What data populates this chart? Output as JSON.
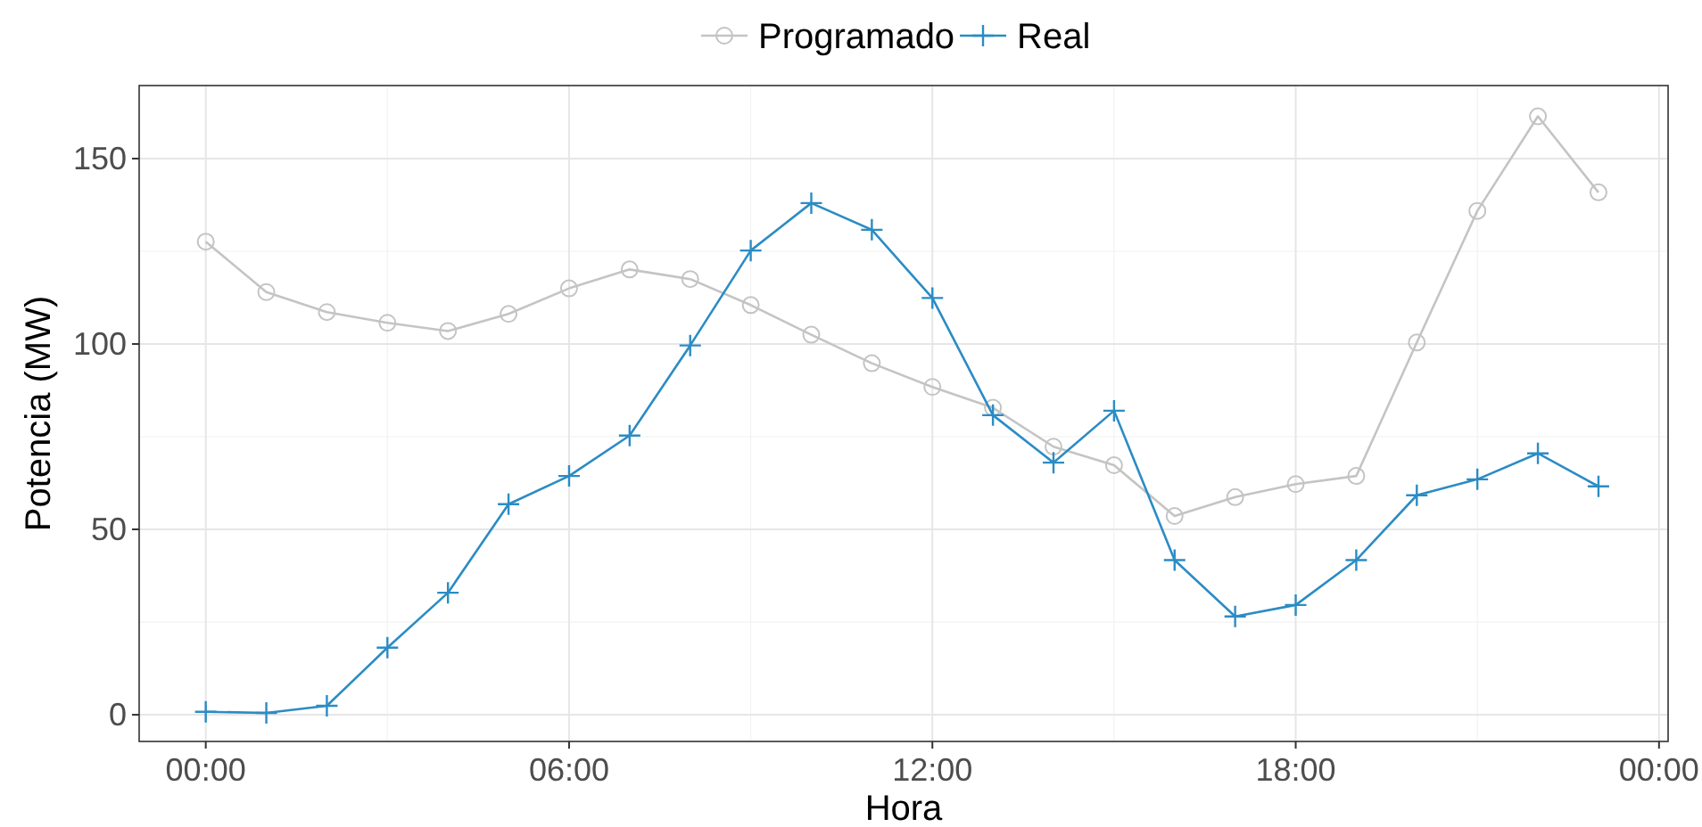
{
  "chart_data": {
    "type": "line",
    "xlabel": "Hora",
    "ylabel": "Potencia (MW)",
    "x": [
      0,
      1,
      2,
      3,
      4,
      5,
      6,
      7,
      8,
      9,
      10,
      11,
      12,
      13,
      14,
      15,
      16,
      17,
      18,
      19,
      20,
      21,
      22,
      23
    ],
    "series": [
      {
        "name": "Programado",
        "color": "#c4c4c4",
        "marker": "circle",
        "values": [
          127.6,
          114,
          108.6,
          105.7,
          103.5,
          108.1,
          115,
          120.1,
          117.5,
          110.5,
          102.5,
          94.8,
          88.4,
          82.8,
          72.3,
          67.3,
          53.6,
          58.7,
          62.2,
          64.4,
          100.4,
          135.9,
          161.4,
          140.9
        ]
      },
      {
        "name": "Real",
        "color": "#2b8cc4",
        "marker": "cross",
        "values": [
          0.8,
          0.5,
          2.4,
          18.1,
          32.9,
          56.8,
          64.4,
          75.3,
          99.6,
          125.2,
          138,
          130.8,
          112.4,
          80.8,
          68,
          82,
          41.7,
          26.5,
          29.6,
          41.7,
          59.2,
          63.5,
          70.5,
          61.6
        ]
      }
    ],
    "xlim": [
      -1.1,
      24.15
    ],
    "xticks": [
      {
        "value": 0,
        "label": "00:00"
      },
      {
        "value": 6,
        "label": "06:00"
      },
      {
        "value": 12,
        "label": "12:00"
      },
      {
        "value": 18,
        "label": "18:00"
      },
      {
        "value": 24,
        "label": "00:00"
      }
    ],
    "ylim": [
      -7.2,
      169.7
    ],
    "yticks": [
      0,
      50,
      100,
      150
    ],
    "grid": true,
    "legend": "top",
    "line_style": "solid"
  }
}
